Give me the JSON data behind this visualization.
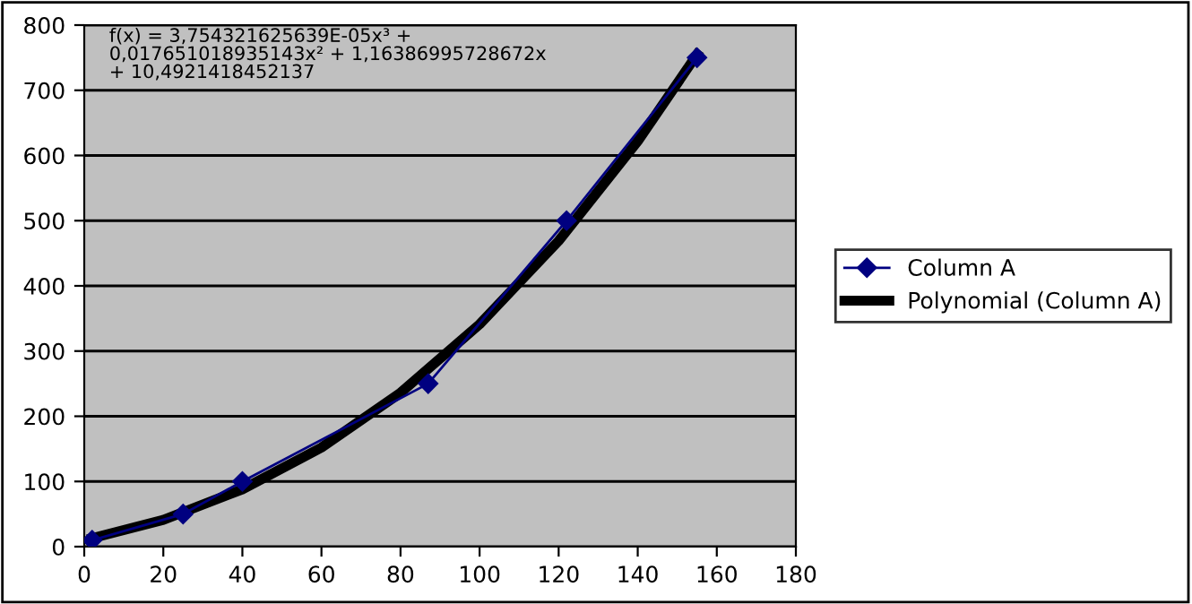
{
  "chart_data": {
    "type": "line",
    "x": [
      2,
      25,
      40,
      87,
      122,
      155
    ],
    "series": [
      {
        "name": "Column A",
        "color": "#000080",
        "values": [
          10,
          50,
          100,
          250,
          500,
          750
        ],
        "marker": "diamond"
      },
      {
        "name": "Polynomial (Column A)",
        "color": "#000000",
        "type": "line",
        "x": [
          2,
          20,
          40,
          60,
          80,
          100,
          120,
          140,
          155
        ],
        "values": [
          13,
          41,
          88,
          152,
          236,
          341,
          469,
          622,
          755
        ],
        "marker": "none"
      }
    ],
    "xlim": [
      0,
      180
    ],
    "xticks": [
      0,
      20,
      40,
      60,
      80,
      100,
      120,
      140,
      160,
      180
    ],
    "ylim": [
      0,
      800
    ],
    "yticks": [
      0,
      100,
      200,
      300,
      400,
      500,
      600,
      700,
      800
    ],
    "grid": "y",
    "legend": "right",
    "annotations": [
      "f(x) = 3,754321625639E-05x³ +\n0,017651018935143x² + 1,16386995728672x\n+ 10,4921418452137"
    ]
  }
}
